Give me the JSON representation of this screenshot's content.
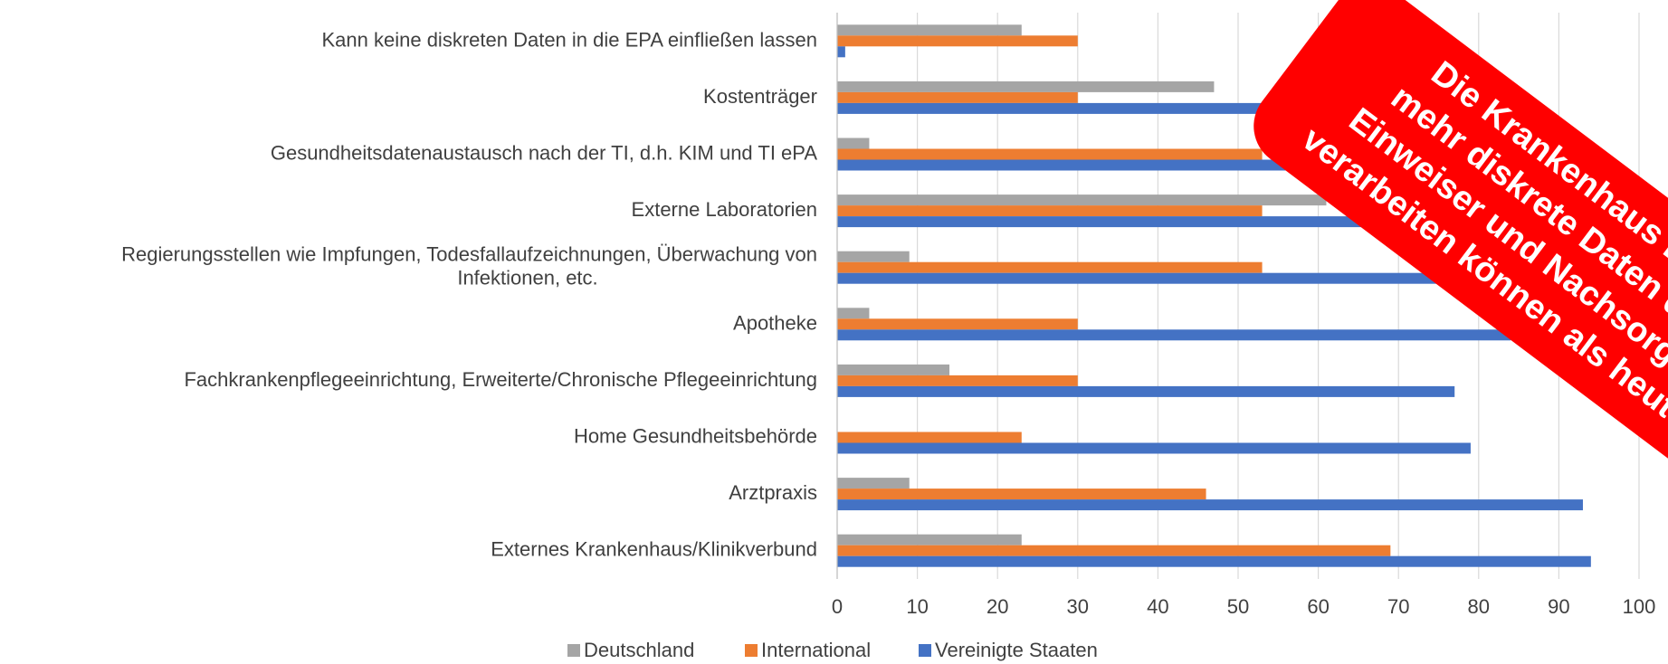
{
  "chart_data": {
    "type": "barh",
    "categories": [
      "Kann keine diskreten Daten in die EPA einfließen lassen",
      "Kostenträger",
      "Gesundheitsdatenaustausch nach der TI, d.h. KIM und TI ePA",
      "Externe Laboratorien",
      "Regierungsstellen wie Impfungen, Todesfallaufzeichnungen, Überwachung von\nInfektionen, etc.",
      "Apotheke",
      "Fachkrankenpflegeeinrichtung, Erweiterte/Chronische Pflegeeinrichtung",
      "Home Gesundheitsbehörde",
      "Arztpraxis",
      "Externes Krankenhaus/Klinikverbund"
    ],
    "series": [
      {
        "name": "Deutschland",
        "color": "#a5a5a5",
        "values": [
          23,
          47,
          4,
          61,
          9,
          4,
          14,
          0,
          9,
          23
        ]
      },
      {
        "name": "International",
        "color": "#ed7d31",
        "values": [
          30,
          30,
          53,
          53,
          53,
          30,
          30,
          23,
          46,
          69
        ]
      },
      {
        "name": "Vereinigte Staaten",
        "color": "#4472c4",
        "values": [
          1,
          80,
          78,
          85,
          86,
          84,
          77,
          79,
          93,
          94
        ]
      }
    ],
    "xlim": [
      0,
      100
    ],
    "xticks": [
      0,
      10,
      20,
      30,
      40,
      50,
      60,
      70,
      80,
      90,
      100
    ],
    "grid": true,
    "legend": "bottom",
    "annotation": [
      "Die Krankenhaus EPA",
      "mehr diskrete Daten der",
      "Einweiser und Nachsorger",
      "verarbeiten können als heute."
    ],
    "annotation_color": "#ff0000"
  }
}
